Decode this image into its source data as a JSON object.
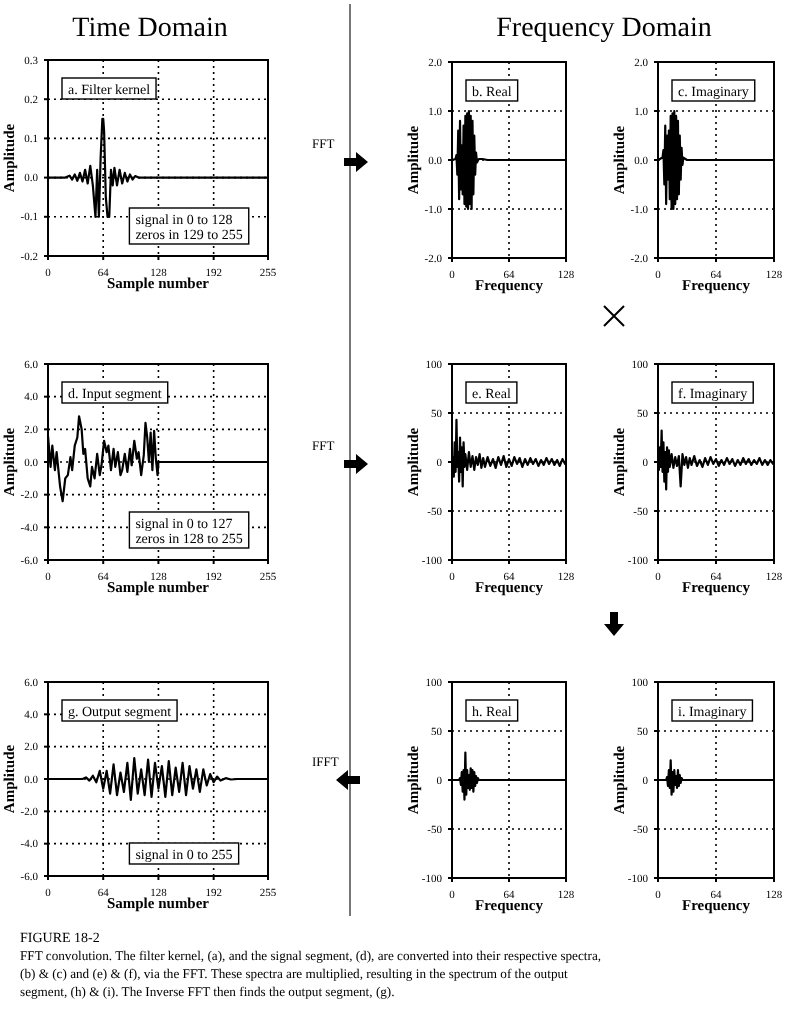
{
  "chart_data": [
    {
      "type": "line",
      "title": "a.  Filter kernel",
      "annotations": [
        "signal in 0 to 128",
        "zeros in 129 to 255"
      ],
      "xlabel": "Sample number",
      "ylabel": "Amplitude",
      "xlim": [
        0,
        255
      ],
      "xticks": [
        0,
        64,
        128,
        192,
        255
      ],
      "ylim": [
        -0.2,
        0.3
      ],
      "yticks": [
        -0.2,
        -0.1,
        {
          "value": 0,
          "label": "0.0"
        },
        0.1,
        0.2,
        0.3
      ],
      "grid": true,
      "series": [
        {
          "color": "#000000",
          "x": [
            0,
            20,
            25,
            28,
            31,
            34,
            37,
            40,
            43,
            46,
            49,
            52,
            55,
            57,
            59,
            61,
            63,
            64,
            65,
            67,
            69,
            71,
            73,
            75,
            77,
            80,
            83,
            86,
            89,
            92,
            95,
            98,
            101,
            105,
            128,
            255
          ],
          "values": [
            0,
            0,
            0.005,
            -0.005,
            0.008,
            -0.008,
            0.012,
            -0.01,
            0.02,
            -0.015,
            0.03,
            -0.02,
            -0.1,
            0.02,
            -0.1,
            0.05,
            0.15,
            0.15,
            0.12,
            -0.05,
            -0.1,
            -0.1,
            0.02,
            -0.02,
            0.025,
            -0.02,
            0.02,
            -0.015,
            0.012,
            -0.01,
            0.008,
            -0.005,
            0.004,
            0,
            0,
            0
          ]
        }
      ]
    },
    {
      "type": "line",
      "title": "b.  Real",
      "xlabel": "Frequency",
      "ylabel": "Amplitude",
      "xlim": [
        0,
        128
      ],
      "xticks": [
        0,
        64,
        128
      ],
      "ylim": [
        -2,
        2
      ],
      "yticks": [
        {
          "value": -2,
          "label": "-2.0"
        },
        {
          "value": -1,
          "label": "-1.0"
        },
        {
          "value": 0,
          "label": "0.0"
        },
        {
          "value": 1,
          "label": "1.0"
        },
        {
          "value": 2,
          "label": "2.0"
        }
      ],
      "grid": true,
      "series": [
        {
          "color": "#000000",
          "x": [
            0,
            4,
            5,
            6,
            7,
            8,
            9,
            10,
            11,
            12,
            13,
            14,
            15,
            16,
            17,
            18,
            19,
            20,
            21,
            22,
            23,
            24,
            25,
            26,
            27,
            28,
            30,
            34,
            40,
            128
          ],
          "values": [
            0,
            0.02,
            0.1,
            -0.3,
            0.6,
            -0.8,
            0.8,
            -0.6,
            0.3,
            -0.7,
            0.7,
            -0.9,
            0.9,
            -0.95,
            0.95,
            -1,
            1,
            -0.9,
            0.9,
            -1,
            0.8,
            -0.7,
            0.5,
            -0.3,
            0.15,
            -0.05,
            0.02,
            0.02,
            0,
            0
          ]
        }
      ]
    },
    {
      "type": "line",
      "title": "c.  Imaginary",
      "xlabel": "Frequency",
      "ylabel": "Amplitude",
      "xlim": [
        0,
        128
      ],
      "xticks": [
        0,
        64,
        128
      ],
      "ylim": [
        -2,
        2
      ],
      "yticks": [
        {
          "value": -2,
          "label": "-2.0"
        },
        {
          "value": -1,
          "label": "-1.0"
        },
        {
          "value": 0,
          "label": "0.0"
        },
        {
          "value": 1,
          "label": "1.0"
        },
        {
          "value": 2,
          "label": "2.0"
        }
      ],
      "grid": true,
      "series": [
        {
          "color": "#000000",
          "x": [
            0,
            5,
            6,
            7,
            8,
            9,
            10,
            11,
            12,
            13,
            14,
            15,
            16,
            17,
            18,
            19,
            20,
            21,
            22,
            23,
            24,
            25,
            26,
            27,
            28,
            32,
            128
          ],
          "values": [
            0,
            0.05,
            0.2,
            -0.5,
            0.7,
            -0.9,
            0.5,
            -0.4,
            0.6,
            -0.8,
            0.9,
            -1,
            0.95,
            -1,
            1,
            -0.9,
            0.9,
            -0.8,
            0.8,
            -0.7,
            0.5,
            -0.4,
            0.25,
            -0.1,
            0.05,
            0,
            0
          ]
        }
      ]
    },
    {
      "type": "line",
      "title": "d.  Input segment",
      "annotations": [
        "signal in 0 to 127",
        "zeros in 128 to 255"
      ],
      "xlabel": "Sample number",
      "ylabel": "Amplitude",
      "xlim": [
        0,
        255
      ],
      "xticks": [
        0,
        64,
        128,
        192,
        255
      ],
      "ylim": [
        -6,
        6
      ],
      "yticks": [
        {
          "value": -6,
          "label": "-6.0"
        },
        {
          "value": -4,
          "label": "-4.0"
        },
        {
          "value": -2,
          "label": "-2.0"
        },
        {
          "value": 0,
          "label": "0.0"
        },
        {
          "value": 2,
          "label": "2.0"
        },
        {
          "value": 4,
          "label": "4.0"
        },
        {
          "value": 6,
          "label": "6.0"
        }
      ],
      "grid": true,
      "series": [
        {
          "color": "#000000",
          "x": [
            0,
            3,
            5,
            8,
            10,
            14,
            17,
            20,
            23,
            26,
            28,
            31,
            34,
            36,
            39,
            41,
            43,
            46,
            49,
            51,
            54,
            57,
            60,
            62,
            65,
            68,
            70,
            73,
            76,
            78,
            81,
            84,
            86,
            89,
            92,
            95,
            97,
            100,
            103,
            105,
            108,
            111,
            113,
            115,
            117,
            119,
            121,
            123,
            125,
            127,
            128,
            255
          ],
          "values": [
            1.6,
            -0.3,
            1,
            -0.5,
            0.6,
            -1.5,
            -2.4,
            -1,
            -0.8,
            0.3,
            -0.5,
            1,
            1.5,
            2.8,
            2,
            0.5,
            0.8,
            -1,
            -1.5,
            -0.3,
            -1,
            0.5,
            -0.8,
            -0.2,
            1.3,
            0.6,
            1,
            -0.5,
            0.8,
            -0.3,
            0.6,
            -0.8,
            -0.5,
            0.5,
            -0.6,
            0.8,
            -0.2,
            1.3,
            0.2,
            0.6,
            -0.8,
            0.4,
            2.4,
            1.5,
            0,
            1.8,
            -0.5,
            1.9,
            0.2,
            -0.8,
            0,
            0
          ]
        }
      ]
    },
    {
      "type": "line",
      "title": "e.  Real",
      "xlabel": "Frequency",
      "ylabel": "Amplitude",
      "xlim": [
        0,
        128
      ],
      "xticks": [
        0,
        64,
        128
      ],
      "ylim": [
        -100,
        100
      ],
      "yticks": [
        -100,
        -50,
        0,
        50,
        100
      ],
      "grid": true,
      "series": [
        {
          "color": "#000000",
          "x": [
            0,
            1,
            2,
            3,
            4,
            5,
            6,
            7,
            8,
            9,
            10,
            11,
            12,
            13,
            14,
            15,
            17,
            19,
            21,
            23,
            25,
            27,
            29,
            31,
            33,
            35,
            37,
            40,
            43,
            46,
            49,
            52,
            55,
            58,
            61,
            64,
            67,
            70,
            73,
            76,
            79,
            82,
            85,
            88,
            91,
            94,
            97,
            100,
            103,
            106,
            109,
            112,
            115,
            118,
            121,
            124,
            127,
            128
          ],
          "values": [
            -10,
            5,
            -15,
            20,
            -10,
            43,
            -5,
            10,
            -20,
            25,
            -10,
            15,
            -25,
            20,
            -5,
            8,
            -8,
            10,
            -5,
            6,
            -8,
            5,
            -3,
            8,
            -6,
            4,
            -5,
            5,
            -4,
            3,
            -6,
            5,
            -3,
            6,
            -5,
            3,
            -4,
            5,
            -2,
            4,
            -5,
            3,
            -3,
            4,
            -2,
            3,
            -4,
            2,
            -3,
            4,
            -2,
            3,
            -3,
            2,
            -4,
            3,
            -2,
            0
          ]
        }
      ]
    },
    {
      "type": "line",
      "title": "f.  Imaginary",
      "xlabel": "Frequency",
      "ylabel": "Amplitude",
      "xlim": [
        0,
        128
      ],
      "xticks": [
        0,
        64,
        128
      ],
      "ylim": [
        -100,
        100
      ],
      "yticks": [
        -100,
        -50,
        0,
        50,
        100
      ],
      "grid": true,
      "series": [
        {
          "color": "#000000",
          "x": [
            0,
            1,
            2,
            3,
            4,
            5,
            6,
            7,
            8,
            9,
            10,
            11,
            12,
            13,
            15,
            17,
            19,
            21,
            23,
            25,
            27,
            29,
            31,
            33,
            35,
            37,
            40,
            43,
            46,
            49,
            52,
            55,
            58,
            61,
            64,
            67,
            70,
            73,
            76,
            79,
            82,
            85,
            88,
            91,
            94,
            97,
            100,
            103,
            106,
            109,
            112,
            115,
            118,
            121,
            124,
            127,
            128
          ],
          "values": [
            5,
            -8,
            15,
            -5,
            32,
            -10,
            20,
            -20,
            10,
            -28,
            15,
            -10,
            12,
            -5,
            8,
            -6,
            5,
            -4,
            6,
            -25,
            8,
            -3,
            5,
            -6,
            4,
            -3,
            6,
            -4,
            2,
            -5,
            4,
            -3,
            5,
            -2,
            3,
            -4,
            2,
            -3,
            4,
            -2,
            3,
            -4,
            2,
            -3,
            4,
            -2,
            3,
            -3,
            2,
            -2,
            4,
            -3,
            2,
            -3,
            2,
            -2,
            0
          ]
        }
      ]
    },
    {
      "type": "line",
      "title": "g.  Output segment",
      "annotations": [
        "signal in 0 to 255"
      ],
      "xlabel": "Sample number",
      "ylabel": "Amplitude",
      "xlim": [
        0,
        255
      ],
      "xticks": [
        0,
        64,
        128,
        192,
        255
      ],
      "ylim": [
        -6,
        6
      ],
      "yticks": [
        {
          "value": -6,
          "label": "-6.0"
        },
        {
          "value": -4,
          "label": "-4.0"
        },
        {
          "value": -2,
          "label": "-2.0"
        },
        {
          "value": 0,
          "label": "0.0"
        },
        {
          "value": 2,
          "label": "2.0"
        },
        {
          "value": 4,
          "label": "4.0"
        },
        {
          "value": 6,
          "label": "6.0"
        }
      ],
      "grid": true,
      "series": [
        {
          "color": "#000000",
          "x": [
            0,
            40,
            44,
            48,
            52,
            56,
            60,
            64,
            68,
            72,
            76,
            80,
            84,
            88,
            92,
            96,
            100,
            104,
            108,
            112,
            116,
            120,
            124,
            128,
            132,
            136,
            140,
            144,
            148,
            152,
            156,
            160,
            164,
            168,
            172,
            176,
            180,
            184,
            188,
            192,
            196,
            200,
            206,
            212,
            220,
            255
          ],
          "values": [
            0,
            0,
            0.1,
            -0.1,
            0.2,
            -0.2,
            0.5,
            -0.6,
            0.5,
            -0.9,
            0.9,
            -1,
            0.4,
            -0.8,
            1,
            -1.3,
            1.3,
            -0.9,
            0.6,
            -1,
            1.2,
            -1.1,
            1,
            -0.6,
            0.8,
            -1.1,
            1.1,
            -1,
            0.7,
            -0.8,
            1,
            -1,
            0.8,
            -0.6,
            0.6,
            -0.8,
            0.6,
            -0.4,
            0.3,
            -0.2,
            0.15,
            -0.1,
            0.05,
            -0.03,
            0,
            0
          ]
        }
      ]
    },
    {
      "type": "line",
      "title": "h.  Real",
      "xlabel": "Frequency",
      "ylabel": "Amplitude",
      "xlim": [
        0,
        128
      ],
      "xticks": [
        0,
        64,
        128
      ],
      "ylim": [
        -100,
        100
      ],
      "yticks": [
        -100,
        -50,
        0,
        50,
        100
      ],
      "grid": true,
      "series": [
        {
          "color": "#000000",
          "x": [
            0,
            8,
            9,
            10,
            11,
            12,
            13,
            14,
            15,
            16,
            17,
            18,
            19,
            20,
            21,
            22,
            23,
            24,
            25,
            26,
            27,
            28,
            29,
            30,
            128
          ],
          "values": [
            0,
            0,
            2,
            -5,
            8,
            -12,
            10,
            -20,
            28,
            -15,
            10,
            -8,
            5,
            -10,
            12,
            -8,
            10,
            -12,
            8,
            -6,
            4,
            -3,
            2,
            0,
            0
          ]
        }
      ]
    },
    {
      "type": "line",
      "title": "i.  Imaginary",
      "xlabel": "Frequency",
      "ylabel": "Amplitude",
      "xlim": [
        0,
        128
      ],
      "xticks": [
        0,
        64,
        128
      ],
      "ylim": [
        -100,
        100
      ],
      "yticks": [
        -100,
        -50,
        0,
        50,
        100
      ],
      "grid": true,
      "series": [
        {
          "color": "#000000",
          "x": [
            0,
            9,
            10,
            11,
            12,
            13,
            14,
            15,
            16,
            17,
            18,
            19,
            20,
            21,
            22,
            23,
            24,
            25,
            26,
            27,
            128
          ],
          "values": [
            0,
            0,
            3,
            -6,
            10,
            -8,
            20,
            -15,
            8,
            -12,
            10,
            -5,
            4,
            -8,
            10,
            -6,
            5,
            -3,
            2,
            0,
            0
          ]
        }
      ]
    },
    {
      "type": "other",
      "annotations": [
        "Time Domain",
        "Frequency Domain",
        "FFT",
        "FFT",
        "IFFT",
        "FIGURE 18-2",
        "FFT convolution.  The filter kernel, (a), and the signal segment, (d), are converted into their respective spectra,",
        "(b) & (c) and (e) & (f), via the FFT.  These spectra are multiplied, resulting in the spectrum of the output",
        "segment, (h) & (i).  The Inverse FFT then finds the output segment, (g)."
      ]
    }
  ]
}
